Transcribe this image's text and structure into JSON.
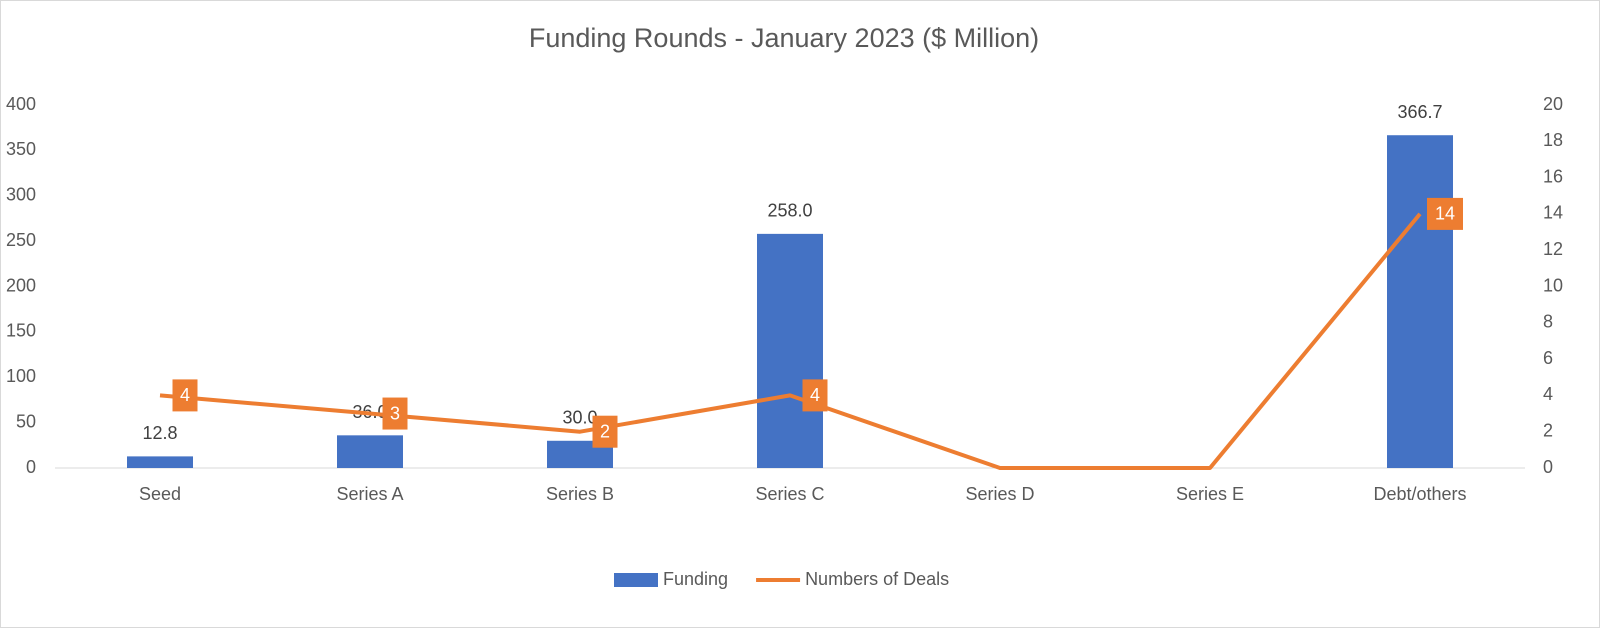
{
  "chart_data": {
    "type": "combo",
    "title": "Funding Rounds - January 2023 ($ Million)",
    "categories": [
      "Seed",
      "Series A",
      "Series B",
      "Series C",
      "Series D",
      "Series E",
      "Debt/others"
    ],
    "series": [
      {
        "name": "Funding",
        "type": "bar",
        "color": "#4472c4",
        "values": [
          12.8,
          36.0,
          30.0,
          258.0,
          null,
          null,
          366.7
        ],
        "value_labels": [
          "12.8",
          "36.0",
          "30.0",
          "258.0",
          null,
          null,
          "366.7"
        ]
      },
      {
        "name": "Numbers of Deals",
        "type": "line",
        "axis": "y2",
        "color": "#ed7d31",
        "values": [
          4,
          3,
          2,
          4,
          0,
          0,
          14
        ],
        "value_labels": [
          "4",
          "3",
          "2",
          "4",
          null,
          null,
          "14"
        ]
      }
    ],
    "ylim": [
      0,
      400
    ],
    "yticks": [
      0,
      50,
      100,
      150,
      200,
      250,
      300,
      350,
      400
    ],
    "y2lim": [
      0,
      20
    ],
    "y2ticks": [
      0,
      2,
      4,
      6,
      8,
      10,
      12,
      14,
      16,
      18,
      20
    ],
    "grid": false,
    "legend": "bottom"
  }
}
